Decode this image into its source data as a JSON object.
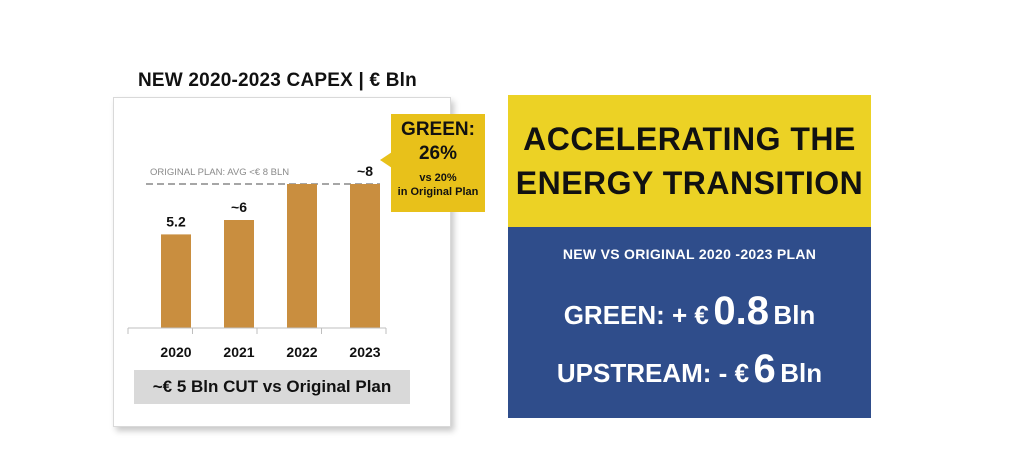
{
  "colors": {
    "bar": "#c98e3f",
    "reference_line": "#a6a6a6",
    "callout": "#e8c11a",
    "headline_bg": "#ecd225",
    "panel_bg": "#2f4d8b"
  },
  "chart_data": {
    "type": "bar",
    "title": "NEW 2020-2023 CAPEX | € Bln",
    "categories": [
      "2020",
      "2021",
      "2022",
      "2023"
    ],
    "values": [
      5.2,
      6,
      8,
      8
    ],
    "data_labels": [
      "5.2",
      "~6",
      "",
      "~8"
    ],
    "reference_line": {
      "label": "ORIGINAL PLAN: AVG <€ 8 BLN",
      "value": 8
    },
    "ylim": [
      0,
      10
    ],
    "xlabel": "",
    "ylabel": "",
    "grid": false,
    "legend": "none"
  },
  "chart": {
    "title": "NEW 2020-2023 CAPEX | € Bln",
    "cut_note": "~€ 5 Bln CUT vs Original Plan"
  },
  "green_callout": {
    "label": "GREEN:",
    "value": "26%",
    "note_line1": "vs 20%",
    "note_line2": "in Original Plan"
  },
  "headline": {
    "line1": "ACCELERATING THE",
    "line2": "ENERGY TRANSITION"
  },
  "plan": {
    "subtitle": "NEW VS ORIGINAL 2020 -2023 PLAN",
    "green": {
      "label": "GREEN: + €",
      "amount": "0.8",
      "unit": "Bln"
    },
    "upstream": {
      "label": "UPSTREAM: - €",
      "amount": "6",
      "unit": "Bln"
    }
  }
}
